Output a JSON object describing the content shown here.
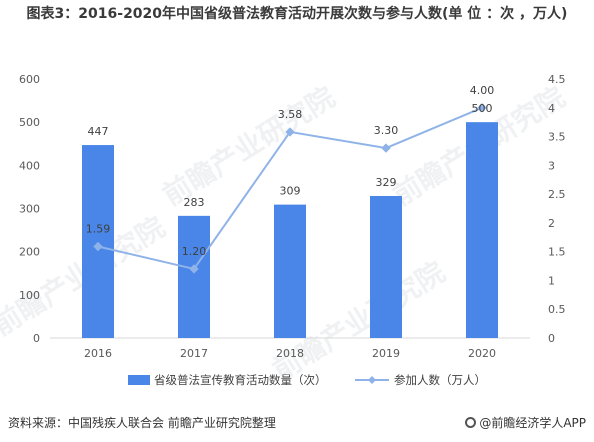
{
  "title": "图表3：2016-2020年中国省级普法教育活动开展次数与参与人数(单 位 ：次 ，万人)",
  "source": "资料来源：中国残疾人联合会 前瞻产业研究院整理",
  "brand": "@前瞻经济学人APP",
  "watermark": "前瞻产业研究院",
  "colors": {
    "bar": "#4a86e8",
    "line": "#8fb3e8",
    "axis": "#d9d9d9",
    "text": "#595959"
  },
  "chart_data": {
    "type": "bar+line",
    "categories": [
      "2016",
      "2017",
      "2018",
      "2019",
      "2020"
    ],
    "series": [
      {
        "name": "省级普法宣传教育活动数量（次）",
        "type": "bar",
        "axis": "left",
        "values": [
          447,
          283,
          309,
          329,
          500
        ],
        "labels": [
          "447",
          "283",
          "309",
          "329",
          "500"
        ]
      },
      {
        "name": "参加人数（万人）",
        "type": "line",
        "axis": "right",
        "values": [
          1.59,
          1.2,
          3.58,
          3.3,
          4.0
        ],
        "labels": [
          "1.59",
          "1.20",
          "3.58",
          "3.30",
          "4.00"
        ]
      }
    ],
    "y_left": {
      "min": 0,
      "max": 600,
      "ticks": [
        0,
        100,
        200,
        300,
        400,
        500,
        600
      ],
      "tick_labels": [
        "0",
        "100",
        "200",
        "300",
        "400",
        "500",
        "600"
      ]
    },
    "y_right": {
      "min": 0,
      "max": 4.5,
      "ticks": [
        0,
        0.5,
        1,
        1.5,
        2,
        2.5,
        3,
        3.5,
        4,
        4.5
      ],
      "tick_labels": [
        "0",
        "0.5",
        "1",
        "1.5",
        "2",
        "2.5",
        "3",
        "3.5",
        "4",
        "4.5"
      ]
    },
    "legend_position": "bottom",
    "grid": false
  }
}
